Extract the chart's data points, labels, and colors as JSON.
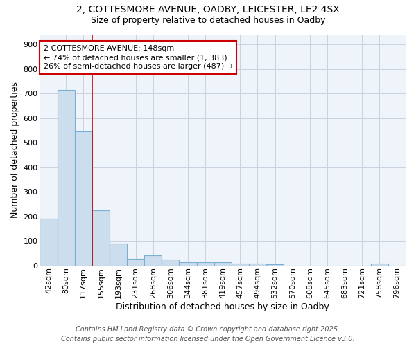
{
  "title_line1": "2, COTTESMORE AVENUE, OADBY, LEICESTER, LE2 4SX",
  "title_line2": "Size of property relative to detached houses in Oadby",
  "xlabel": "Distribution of detached houses by size in Oadby",
  "ylabel": "Number of detached properties",
  "categories": [
    "42sqm",
    "80sqm",
    "117sqm",
    "155sqm",
    "193sqm",
    "231sqm",
    "268sqm",
    "306sqm",
    "344sqm",
    "381sqm",
    "419sqm",
    "457sqm",
    "494sqm",
    "532sqm",
    "570sqm",
    "608sqm",
    "645sqm",
    "683sqm",
    "721sqm",
    "758sqm",
    "796sqm"
  ],
  "values": [
    190,
    715,
    545,
    225,
    90,
    28,
    40,
    25,
    13,
    12,
    12,
    8,
    8,
    5,
    0,
    0,
    0,
    0,
    0,
    8,
    0
  ],
  "bar_color": "#ccdded",
  "bar_edgecolor": "#7ab0d4",
  "grid_color": "#c8d4e0",
  "background_color": "#ffffff",
  "plot_bg_color": "#eef4fa",
  "red_line_index": 2.5,
  "annotation_text": "2 COTTESMORE AVENUE: 148sqm\n← 74% of detached houses are smaller (1, 383)\n26% of semi-detached houses are larger (487) →",
  "annotation_box_color": "#ffffff",
  "annotation_text_color": "#000000",
  "red_color": "#cc0000",
  "ylim": [
    0,
    940
  ],
  "yticks": [
    0,
    100,
    200,
    300,
    400,
    500,
    600,
    700,
    800,
    900
  ],
  "footer_line1": "Contains HM Land Registry data © Crown copyright and database right 2025.",
  "footer_line2": "Contains public sector information licensed under the Open Government Licence v3.0.",
  "title_fontsize": 10,
  "subtitle_fontsize": 9,
  "axis_label_fontsize": 9,
  "tick_fontsize": 8,
  "annotation_fontsize": 8,
  "footer_fontsize": 7
}
